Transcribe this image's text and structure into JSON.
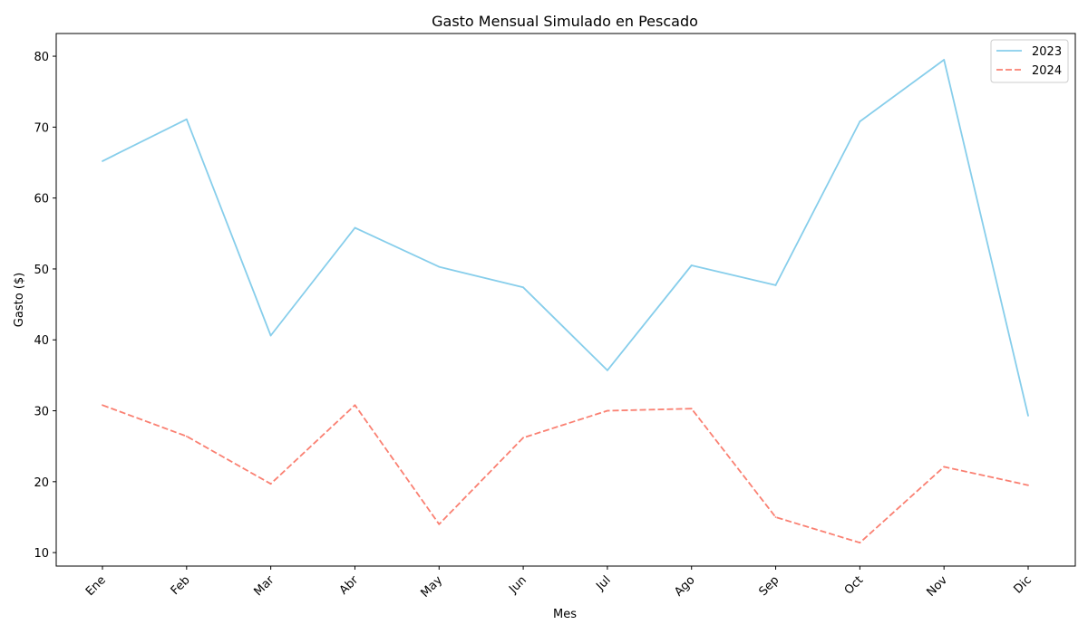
{
  "chart_data": {
    "type": "line",
    "title": "Gasto Mensual Simulado en Pescado",
    "xlabel": "Mes",
    "ylabel": "Gasto ($)",
    "categories": [
      "Ene",
      "Feb",
      "Mar",
      "Abr",
      "May",
      "Jun",
      "Jul",
      "Ago",
      "Sep",
      "Oct",
      "Nov",
      "Dic"
    ],
    "ylim": [
      8.1,
      83.2
    ],
    "yticks": [
      10,
      20,
      30,
      40,
      50,
      60,
      70,
      80
    ],
    "grid": false,
    "legend_position": "top-right",
    "series": [
      {
        "name": "2023",
        "color": "#87ceeb",
        "line_style": "solid",
        "values": [
          65.2,
          71.1,
          40.6,
          55.8,
          50.3,
          47.4,
          35.7,
          50.5,
          47.7,
          70.8,
          79.5,
          29.3
        ]
      },
      {
        "name": "2024",
        "color": "#fa8072",
        "line_style": "dashed",
        "values": [
          30.8,
          26.4,
          19.7,
          30.8,
          14.0,
          26.2,
          30.0,
          30.3,
          15.0,
          11.4,
          22.1,
          19.5
        ]
      }
    ]
  }
}
